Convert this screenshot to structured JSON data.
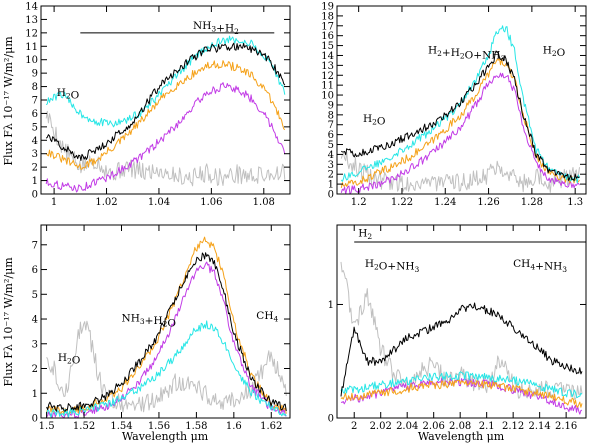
{
  "figure": {
    "shared_ylabel": "Flux Fλ 10⁻¹⁷ W/m²/μm",
    "shared_xlabel": "Wavelength μm"
  },
  "series_colors": {
    "black": "#000000",
    "cyan": "#28e6e6",
    "orange": "#f5a21a",
    "magenta": "#c23ce6",
    "grey": "#c0c0c0"
  },
  "chart_data": [
    {
      "type": "line",
      "panel": "top-left",
      "xlabel": "",
      "ylabel": "Flux Fλ 10⁻¹⁷ W/m²/μm",
      "xlim": [
        0.995,
        1.09
      ],
      "ylim": [
        0,
        14
      ],
      "xticks": [
        1,
        1.02,
        1.04,
        1.06,
        1.08
      ],
      "xticklabels": [
        "1",
        "1.02",
        "1.04",
        "1.06",
        "1.08"
      ],
      "yticks": [
        0,
        1,
        2,
        3,
        4,
        5,
        6,
        7,
        8,
        9,
        10,
        11,
        12,
        13,
        14
      ],
      "yticklabels": [
        "0",
        "1",
        "2",
        "3",
        "4",
        "5",
        "6",
        "7",
        "8",
        "9",
        "10",
        "11",
        "12",
        "13",
        "14"
      ],
      "annotations": [
        {
          "text": "NH3+H2",
          "x": 1.053,
          "y": 12.3
        },
        {
          "text": "H2O",
          "x": 1.001,
          "y": 7.3
        }
      ],
      "band_lines": [
        {
          "x": [
            1.01,
            1.084
          ],
          "y": 12.0
        }
      ],
      "series": [
        {
          "color": "black",
          "x": [
            0.997,
            1.003,
            1.01,
            1.016,
            1.022,
            1.028,
            1.034,
            1.04,
            1.046,
            1.052,
            1.058,
            1.064,
            1.07,
            1.076,
            1.082,
            1.088
          ],
          "values": [
            4.3,
            3.6,
            2.6,
            3.3,
            4.1,
            5.0,
            6.4,
            8.0,
            9.0,
            10.0,
            10.8,
            10.9,
            11.0,
            10.8,
            10.0,
            8.3
          ]
        },
        {
          "color": "cyan",
          "x": [
            0.997,
            1.003,
            1.01,
            1.016,
            1.022,
            1.028,
            1.034,
            1.04,
            1.046,
            1.052,
            1.058,
            1.064,
            1.07,
            1.076,
            1.082,
            1.088
          ],
          "values": [
            6.8,
            7.5,
            6.0,
            5.4,
            5.2,
            5.5,
            6.2,
            7.4,
            8.6,
            9.9,
            10.9,
            11.4,
            11.5,
            11.1,
            9.8,
            7.6
          ]
        },
        {
          "color": "orange",
          "x": [
            0.997,
            1.003,
            1.01,
            1.016,
            1.022,
            1.028,
            1.034,
            1.04,
            1.046,
            1.052,
            1.058,
            1.064,
            1.07,
            1.076,
            1.082,
            1.088
          ],
          "values": [
            3.2,
            2.6,
            2.0,
            2.5,
            3.4,
            4.4,
            5.6,
            6.9,
            8.0,
            8.8,
            9.5,
            9.7,
            9.4,
            8.7,
            7.3,
            5.0
          ]
        },
        {
          "color": "magenta",
          "x": [
            0.997,
            1.003,
            1.01,
            1.016,
            1.022,
            1.028,
            1.034,
            1.04,
            1.046,
            1.052,
            1.058,
            1.064,
            1.07,
            1.076,
            1.082,
            1.088
          ],
          "values": [
            0.9,
            0.6,
            0.4,
            0.9,
            1.4,
            2.1,
            2.9,
            3.9,
            5.0,
            6.3,
            7.5,
            8.0,
            7.8,
            7.0,
            5.4,
            3.2
          ]
        },
        {
          "color": "grey",
          "x": [
            0.997,
            1.003,
            1.01,
            1.016,
            1.022,
            1.028,
            1.034,
            1.04,
            1.046,
            1.052,
            1.058,
            1.064,
            1.07,
            1.076,
            1.082,
            1.088
          ],
          "values": [
            6.0,
            3.5,
            2.0,
            2.5,
            1.5,
            2.0,
            1.6,
            1.8,
            1.4,
            1.2,
            1.6,
            1.2,
            1.5,
            1.3,
            1.5,
            1.6
          ]
        }
      ]
    },
    {
      "type": "line",
      "panel": "top-right",
      "xlabel": "",
      "ylabel": "",
      "xlim": [
        1.19,
        1.305
      ],
      "ylim": [
        0,
        19
      ],
      "xticks": [
        1.2,
        1.22,
        1.24,
        1.26,
        1.28,
        1.3
      ],
      "xticklabels": [
        "1.2",
        "1.22",
        "1.24",
        "1.26",
        "1.28",
        "1.3"
      ],
      "yticks": [
        0,
        1,
        2,
        3,
        4,
        5,
        6,
        7,
        8,
        9,
        10,
        11,
        12,
        13,
        14,
        15,
        16,
        17,
        18,
        19
      ],
      "yticklabels": [
        "0",
        "1",
        "2",
        "3",
        "4",
        "5",
        "6",
        "7",
        "8",
        "9",
        "10",
        "11",
        "12",
        "13",
        "14",
        "15",
        "16",
        "17",
        "18",
        "19"
      ],
      "annotations": [
        {
          "text": "H2+H2O+NH3",
          "x": 1.232,
          "y": 14.2
        },
        {
          "text": "H2O",
          "x": 1.285,
          "y": 14.2
        },
        {
          "text": "H2O",
          "x": 1.202,
          "y": 7.3
        }
      ],
      "band_lines": [],
      "series": [
        {
          "color": "black",
          "x": [
            1.192,
            1.2,
            1.208,
            1.216,
            1.224,
            1.232,
            1.24,
            1.248,
            1.254,
            1.26,
            1.264,
            1.268,
            1.272,
            1.276,
            1.282,
            1.288,
            1.294,
            1.302
          ],
          "values": [
            4.5,
            4.0,
            4.6,
            5.2,
            6.0,
            6.8,
            8.0,
            9.5,
            11.0,
            13.0,
            14.2,
            13.5,
            11.5,
            8.0,
            4.0,
            2.3,
            1.8,
            1.6
          ]
        },
        {
          "color": "cyan",
          "x": [
            1.192,
            1.2,
            1.208,
            1.216,
            1.224,
            1.232,
            1.24,
            1.248,
            1.254,
            1.26,
            1.264,
            1.268,
            1.272,
            1.276,
            1.282,
            1.288,
            1.294,
            1.302
          ],
          "values": [
            1.6,
            2.2,
            3.0,
            4.0,
            5.0,
            6.2,
            7.6,
            9.5,
            11.6,
            14.0,
            16.5,
            16.8,
            14.5,
            9.5,
            4.5,
            2.5,
            1.8,
            1.5
          ]
        },
        {
          "color": "orange",
          "x": [
            1.192,
            1.2,
            1.208,
            1.216,
            1.224,
            1.232,
            1.24,
            1.248,
            1.254,
            1.26,
            1.264,
            1.268,
            1.272,
            1.276,
            1.282,
            1.288,
            1.294,
            1.302
          ],
          "values": [
            0.8,
            1.2,
            2.0,
            2.8,
            3.8,
            5.0,
            6.5,
            8.2,
            10.0,
            12.2,
            13.5,
            13.2,
            11.5,
            8.0,
            3.8,
            2.2,
            1.6,
            1.3
          ]
        },
        {
          "color": "magenta",
          "x": [
            1.192,
            1.2,
            1.208,
            1.216,
            1.224,
            1.232,
            1.24,
            1.248,
            1.254,
            1.26,
            1.264,
            1.268,
            1.272,
            1.276,
            1.282,
            1.288,
            1.294,
            1.302
          ],
          "values": [
            0.3,
            0.5,
            0.9,
            1.6,
            2.6,
            3.8,
            5.2,
            7.0,
            9.0,
            11.2,
            12.2,
            12.0,
            10.5,
            7.0,
            3.0,
            1.5,
            1.0,
            0.8
          ]
        },
        {
          "color": "grey",
          "x": [
            1.192,
            1.2,
            1.208,
            1.216,
            1.224,
            1.232,
            1.24,
            1.248,
            1.254,
            1.26,
            1.264,
            1.268,
            1.272,
            1.276,
            1.282,
            1.288,
            1.294,
            1.302
          ],
          "values": [
            4.0,
            2.5,
            1.5,
            1.2,
            1.0,
            1.3,
            1.0,
            1.2,
            1.5,
            2.0,
            3.0,
            2.5,
            1.8,
            1.0,
            2.0,
            1.0,
            1.5,
            2.5
          ]
        }
      ]
    },
    {
      "type": "line",
      "panel": "bottom-left",
      "xlabel": "Wavelength μm",
      "ylabel": "Flux Fλ 10⁻¹⁷ W/m²/μm",
      "xlim": [
        1.497,
        1.63
      ],
      "ylim": [
        0,
        7.8
      ],
      "xticks": [
        1.5,
        1.52,
        1.54,
        1.56,
        1.58,
        1.6,
        1.62
      ],
      "xticklabels": [
        "1.5",
        "1.52",
        "1.54",
        "1.56",
        "1.58",
        "1.6",
        "1.62"
      ],
      "yticks": [
        0,
        1,
        2,
        3,
        4,
        5,
        6,
        7
      ],
      "yticklabels": [
        "0",
        "1",
        "2",
        "3",
        "4",
        "5",
        "6",
        "7"
      ],
      "annotations": [
        {
          "text": "NH3+H2O",
          "x": 1.54,
          "y": 3.9
        },
        {
          "text": "CH4",
          "x": 1.612,
          "y": 4.0
        },
        {
          "text": "H2O",
          "x": 1.506,
          "y": 2.3
        }
      ],
      "band_lines": [],
      "series": [
        {
          "color": "black",
          "x": [
            1.5,
            1.51,
            1.52,
            1.53,
            1.54,
            1.55,
            1.56,
            1.57,
            1.575,
            1.58,
            1.585,
            1.59,
            1.595,
            1.6,
            1.61,
            1.62,
            1.628
          ],
          "values": [
            0.5,
            0.4,
            0.5,
            0.8,
            1.4,
            2.3,
            3.4,
            5.0,
            5.8,
            6.4,
            6.6,
            6.2,
            5.0,
            3.4,
            1.5,
            0.6,
            0.4
          ]
        },
        {
          "color": "cyan",
          "x": [
            1.5,
            1.51,
            1.52,
            1.53,
            1.54,
            1.55,
            1.56,
            1.57,
            1.575,
            1.58,
            1.585,
            1.59,
            1.595,
            1.6,
            1.61,
            1.62,
            1.628
          ],
          "values": [
            0.2,
            0.2,
            0.3,
            0.5,
            0.8,
            1.2,
            1.8,
            2.6,
            3.1,
            3.6,
            3.8,
            3.6,
            3.0,
            2.1,
            1.0,
            0.4,
            0.2
          ]
        },
        {
          "color": "orange",
          "x": [
            1.5,
            1.51,
            1.52,
            1.53,
            1.54,
            1.55,
            1.56,
            1.57,
            1.575,
            1.58,
            1.585,
            1.59,
            1.595,
            1.6,
            1.61,
            1.62,
            1.628
          ],
          "values": [
            0.3,
            0.3,
            0.4,
            0.7,
            1.2,
            2.1,
            3.3,
            5.0,
            6.0,
            6.9,
            7.2,
            6.8,
            5.6,
            3.8,
            1.6,
            0.6,
            0.3
          ]
        },
        {
          "color": "magenta",
          "x": [
            1.5,
            1.51,
            1.52,
            1.53,
            1.54,
            1.55,
            1.56,
            1.57,
            1.575,
            1.58,
            1.585,
            1.59,
            1.595,
            1.6,
            1.61,
            1.62,
            1.628
          ],
          "values": [
            0.1,
            0.1,
            0.2,
            0.4,
            0.8,
            1.5,
            2.6,
            4.2,
            5.2,
            6.0,
            6.2,
            5.8,
            4.6,
            3.0,
            1.2,
            0.4,
            0.2
          ]
        },
        {
          "color": "grey",
          "x": [
            1.5,
            1.51,
            1.52,
            1.53,
            1.54,
            1.55,
            1.56,
            1.57,
            1.575,
            1.58,
            1.585,
            1.59,
            1.595,
            1.6,
            1.61,
            1.62,
            1.628
          ],
          "values": [
            2.6,
            1.0,
            4.2,
            1.0,
            0.6,
            0.5,
            0.8,
            1.5,
            1.3,
            1.2,
            1.0,
            0.8,
            0.6,
            0.8,
            1.2,
            2.5,
            1.2
          ]
        }
      ]
    },
    {
      "type": "line",
      "panel": "bottom-right",
      "xlabel": "Wavelength μm",
      "ylabel": "",
      "xlim": [
        1.987,
        2.175
      ],
      "ylim": [
        0,
        1.7
      ],
      "xticks": [
        2,
        2.02,
        2.04,
        2.06,
        2.08,
        2.1,
        2.12,
        2.14,
        2.16
      ],
      "xticklabels": [
        "2",
        "2.02",
        "2.04",
        "2.06",
        "2.08",
        "2.1",
        "2.12",
        "2.14",
        "2.16"
      ],
      "yticks": [
        0,
        1
      ],
      "yticklabels": [
        "0",
        "1"
      ],
      "annotations": [
        {
          "text": "H2",
          "x": 2.003,
          "y": 1.6
        },
        {
          "text": "H2O+NH3",
          "x": 2.008,
          "y": 1.33
        },
        {
          "text": "CH4+NH3",
          "x": 2.12,
          "y": 1.33
        }
      ],
      "band_lines": [
        {
          "x": [
            2.0,
            2.175
          ],
          "y": 1.55
        }
      ],
      "series": [
        {
          "color": "black",
          "x": [
            1.99,
            2.0,
            2.01,
            2.02,
            2.03,
            2.04,
            2.05,
            2.06,
            2.07,
            2.08,
            2.09,
            2.1,
            2.11,
            2.12,
            2.13,
            2.14,
            2.15,
            2.16,
            2.172
          ],
          "values": [
            0.2,
            0.8,
            0.5,
            0.5,
            0.6,
            0.7,
            0.75,
            0.8,
            0.85,
            0.95,
            1.0,
            0.95,
            0.9,
            0.8,
            0.7,
            0.6,
            0.5,
            0.45,
            0.4
          ]
        },
        {
          "color": "cyan",
          "x": [
            1.99,
            2.0,
            2.01,
            2.02,
            2.03,
            2.04,
            2.05,
            2.06,
            2.07,
            2.08,
            2.09,
            2.1,
            2.11,
            2.12,
            2.13,
            2.14,
            2.15,
            2.16,
            2.172
          ],
          "values": [
            0.25,
            0.25,
            0.27,
            0.29,
            0.31,
            0.33,
            0.35,
            0.36,
            0.37,
            0.37,
            0.37,
            0.36,
            0.35,
            0.33,
            0.31,
            0.28,
            0.25,
            0.22,
            0.2
          ]
        },
        {
          "color": "orange",
          "x": [
            1.99,
            2.0,
            2.01,
            2.02,
            2.03,
            2.04,
            2.05,
            2.06,
            2.07,
            2.08,
            2.09,
            2.1,
            2.11,
            2.12,
            2.13,
            2.14,
            2.15,
            2.16,
            2.172
          ],
          "values": [
            0.18,
            0.19,
            0.2,
            0.22,
            0.24,
            0.26,
            0.28,
            0.29,
            0.3,
            0.3,
            0.3,
            0.29,
            0.28,
            0.26,
            0.24,
            0.21,
            0.18,
            0.15,
            0.12
          ]
        },
        {
          "color": "magenta",
          "x": [
            1.99,
            2.0,
            2.01,
            2.02,
            2.03,
            2.04,
            2.05,
            2.06,
            2.07,
            2.08,
            2.09,
            2.1,
            2.11,
            2.12,
            2.13,
            2.14,
            2.15,
            2.16,
            2.172
          ],
          "values": [
            0.15,
            0.17,
            0.19,
            0.22,
            0.25,
            0.28,
            0.3,
            0.31,
            0.32,
            0.32,
            0.31,
            0.3,
            0.28,
            0.25,
            0.22,
            0.18,
            0.14,
            0.1,
            0.06
          ]
        },
        {
          "color": "grey",
          "x": [
            1.99,
            2.0,
            2.01,
            2.02,
            2.03,
            2.04,
            2.05,
            2.06,
            2.07,
            2.08,
            2.09,
            2.1,
            2.11,
            2.12,
            2.13,
            2.14,
            2.15,
            2.16,
            2.172
          ],
          "values": [
            1.4,
            0.8,
            1.1,
            0.6,
            0.4,
            0.3,
            0.4,
            0.5,
            0.3,
            0.4,
            0.3,
            0.3,
            0.5,
            0.3,
            0.2,
            0.3,
            0.2,
            0.3,
            0.2
          ]
        }
      ]
    }
  ]
}
